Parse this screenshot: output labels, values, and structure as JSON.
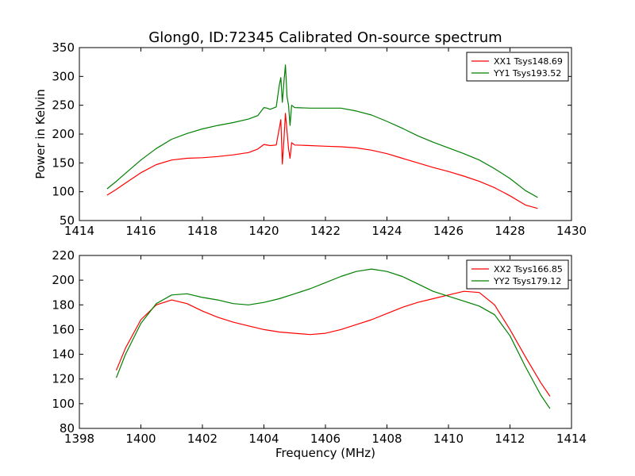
{
  "figure_title": "Glong0, ID:72345 Calibrated On-source spectrum",
  "chart_data": [
    {
      "type": "line",
      "title": "Glong0, ID:72345 Calibrated On-source spectrum",
      "xlabel": "",
      "ylabel": "Power in Kelvin",
      "xlim": [
        1414,
        1430
      ],
      "ylim": [
        50,
        350
      ],
      "xticks": [
        "1414",
        "1416",
        "1418",
        "1420",
        "1422",
        "1424",
        "1426",
        "1428",
        "1430"
      ],
      "yticks": [
        "50",
        "100",
        "150",
        "200",
        "250",
        "300",
        "350"
      ],
      "legend_position": "top-right",
      "grid": false,
      "series": [
        {
          "name": "XX1 Tsys148.69",
          "color": "#ff0000",
          "x": [
            1414.9,
            1415.2,
            1415.5,
            1416.0,
            1416.5,
            1417.0,
            1417.5,
            1418.0,
            1418.5,
            1419.0,
            1419.5,
            1419.8,
            1420.0,
            1420.2,
            1420.4,
            1420.5,
            1420.55,
            1420.6,
            1420.65,
            1420.7,
            1420.75,
            1420.8,
            1420.85,
            1420.9,
            1421.0,
            1421.5,
            1422.0,
            1422.5,
            1423.0,
            1423.5,
            1424.0,
            1424.5,
            1425.0,
            1425.5,
            1426.0,
            1426.5,
            1427.0,
            1427.5,
            1428.0,
            1428.5,
            1428.9
          ],
          "y": [
            94,
            104,
            115,
            133,
            147,
            155,
            158,
            159,
            161,
            164,
            168,
            174,
            182,
            180,
            181,
            210,
            225,
            148,
            190,
            236,
            205,
            175,
            158,
            185,
            181,
            180,
            179,
            178,
            176,
            172,
            166,
            158,
            150,
            142,
            135,
            127,
            118,
            107,
            93,
            77,
            71
          ]
        },
        {
          "name": "YY1 Tsys193.52",
          "color": "#008000",
          "x": [
            1414.9,
            1415.2,
            1415.5,
            1416.0,
            1416.5,
            1417.0,
            1417.5,
            1418.0,
            1418.5,
            1419.0,
            1419.5,
            1419.8,
            1420.0,
            1420.1,
            1420.2,
            1420.4,
            1420.5,
            1420.55,
            1420.6,
            1420.65,
            1420.7,
            1420.75,
            1420.8,
            1420.85,
            1420.9,
            1421.0,
            1421.5,
            1422.0,
            1422.5,
            1423.0,
            1423.5,
            1424.0,
            1424.5,
            1425.0,
            1425.5,
            1426.0,
            1426.5,
            1427.0,
            1427.5,
            1428.0,
            1428.5,
            1428.9
          ],
          "y": [
            105,
            118,
            132,
            155,
            175,
            191,
            201,
            209,
            215,
            220,
            226,
            232,
            246,
            245,
            243,
            247,
            285,
            298,
            255,
            290,
            320,
            265,
            250,
            215,
            250,
            246,
            245,
            245,
            245,
            240,
            233,
            222,
            210,
            197,
            186,
            176,
            166,
            155,
            140,
            123,
            102,
            90
          ]
        }
      ]
    },
    {
      "type": "line",
      "title": "",
      "xlabel": "Frequency (MHz)",
      "ylabel": "",
      "xlim": [
        1398,
        1414
      ],
      "ylim": [
        80,
        220
      ],
      "xticks": [
        "1398",
        "1400",
        "1402",
        "1404",
        "1406",
        "1408",
        "1410",
        "1412",
        "1414"
      ],
      "yticks": [
        "80",
        "100",
        "120",
        "140",
        "160",
        "180",
        "200",
        "220"
      ],
      "legend_position": "top-right",
      "grid": false,
      "series": [
        {
          "name": "XX2 Tsys166.85",
          "color": "#ff0000",
          "x": [
            1399.2,
            1399.5,
            1400.0,
            1400.5,
            1401.0,
            1401.5,
            1402.0,
            1402.5,
            1403.0,
            1403.5,
            1404.0,
            1404.5,
            1405.0,
            1405.5,
            1406.0,
            1406.5,
            1407.0,
            1407.5,
            1408.0,
            1408.5,
            1409.0,
            1409.5,
            1410.0,
            1410.5,
            1411.0,
            1411.5,
            1412.0,
            1412.5,
            1413.0,
            1413.3
          ],
          "y": [
            127,
            145,
            168,
            180,
            184,
            181,
            175,
            170,
            166,
            163,
            160,
            158,
            157,
            156,
            157,
            160,
            164,
            168,
            173,
            178,
            182,
            185,
            188,
            191,
            190,
            180,
            160,
            138,
            117,
            106
          ]
        },
        {
          "name": "YY2 Tsys179.12",
          "color": "#008000",
          "x": [
            1399.2,
            1399.5,
            1400.0,
            1400.5,
            1401.0,
            1401.5,
            1402.0,
            1402.5,
            1403.0,
            1403.5,
            1404.0,
            1404.5,
            1405.0,
            1405.5,
            1406.0,
            1406.5,
            1407.0,
            1407.5,
            1408.0,
            1408.5,
            1409.0,
            1409.5,
            1410.0,
            1410.5,
            1411.0,
            1411.5,
            1412.0,
            1412.5,
            1413.0,
            1413.3
          ],
          "y": [
            121,
            140,
            165,
            181,
            188,
            189,
            186,
            184,
            181,
            180,
            182,
            185,
            189,
            193,
            198,
            203,
            207,
            209,
            207,
            203,
            197,
            191,
            187,
            183,
            179,
            172,
            155,
            130,
            107,
            96
          ]
        }
      ]
    }
  ]
}
